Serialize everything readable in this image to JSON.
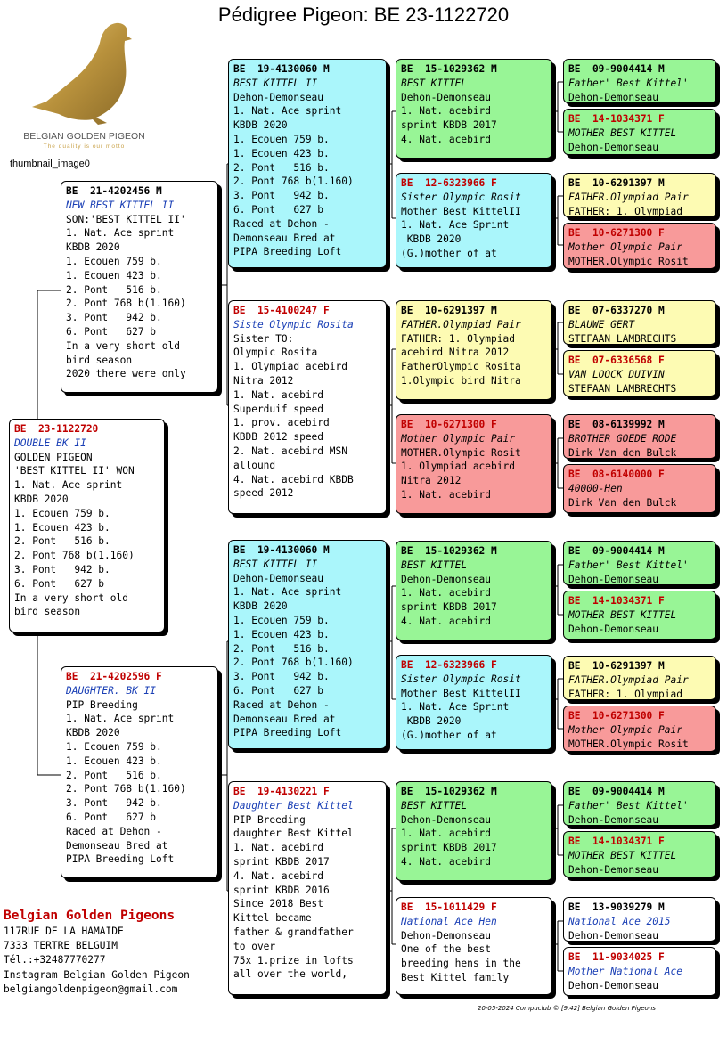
{
  "title": "Pédigree Pigeon: BE  23-1122720",
  "logo": {
    "brand": "BELGIAN GOLDEN PIGEON",
    "slogan": "The quality is our motto",
    "caption": "thumbnail_image0"
  },
  "breeder": {
    "name": "Belgian Golden Pigeons",
    "lines": [
      "117RUE DE LA HAMAIDE",
      "7333  TERTRE BELGUIM",
      "Tél.:+32487770277",
      "Instagram Belgian Golden Pigeon",
      "belgiangoldenpigeon@gmail.com"
    ]
  },
  "footer": "20-05-2024   Compuclub © [9.42]  Belgian Golden Pigeons",
  "boxes": [
    {
      "key": "subject",
      "sex": "F",
      "color": "white",
      "id": "BE  23-1122720",
      "name": "DOUBLE BK II",
      "lines": [
        "GOLDEN PIGEON",
        "'BEST KITTEL II' WON",
        "1. Nat. Ace sprint",
        "KBDB 2020",
        "1. Ecouen 759 b.",
        "1. Ecouen 423 b.",
        "2. Pont   516 b.",
        "2. Pont 768 b(1.160)",
        "3. Pont   942 b.",
        "6. Pont   627 b",
        "In a very short old",
        "bird season"
      ]
    },
    {
      "key": "father",
      "sex": "M",
      "color": "white",
      "id": "BE  21-4202456 M",
      "name": "NEW BEST KITTEL II",
      "lines": [
        "SON:'BEST KITTEL II'",
        "1. Nat. Ace sprint",
        "KBDB 2020",
        "1. Ecouen 759 b.",
        "1. Ecouen 423 b.",
        "2. Pont   516 b.",
        "2. Pont 768 b(1.160)",
        "3. Pont   942 b.",
        "6. Pont   627 b",
        "In a very short old",
        "bird season",
        "2020 there were only"
      ]
    },
    {
      "key": "mother",
      "sex": "F",
      "color": "white",
      "id": "BE  21-4202596 F",
      "name": "DAUGHTER. BK II",
      "lines": [
        "PIP Breeding",
        "1. Nat. Ace sprint",
        "KBDB 2020",
        "1. Ecouen 759 b.",
        "1. Ecouen 423 b.",
        "2. Pont   516 b.",
        "2. Pont 768 b(1.160)",
        "3. Pont   942 b.",
        "6. Pont   627 b",
        "Raced at Dehon -",
        "Demonseau Bred at",
        "PIPA Breeding Loft"
      ]
    },
    {
      "key": "ff",
      "sex": "M",
      "color": "cyan",
      "id": "BE  19-4130060 M",
      "name": "BEST KITTEL II",
      "lines": [
        "Dehon-Demonseau",
        "1. Nat. Ace sprint",
        "KBDB 2020",
        "1. Ecouen 759 b.",
        "1. Ecouen 423 b.",
        "2. Pont   516 b.",
        "2. Pont 768 b(1.160)",
        "3. Pont   942 b.",
        "6. Pont   627 b",
        "Raced at Dehon -",
        "Demonseau Bred at",
        "PIPA Breeding Loft"
      ]
    },
    {
      "key": "fm",
      "sex": "F",
      "color": "white",
      "id": "BE  15-4100247 F",
      "name": "Siste Olympic Rosita",
      "lines": [
        "Sister TO:",
        "Olympic Rosita",
        "1. Olympiad acebird",
        "Nitra 2012",
        "1. Nat. acebird",
        "Superduif speed",
        "1. prov. acebird",
        "KBDB 2012 speed",
        "2. Nat. acebird MSN",
        "allound",
        "4. Nat. acebird KBDB",
        "speed 2012"
      ]
    },
    {
      "key": "mf",
      "sex": "M",
      "color": "cyan",
      "id": "BE  19-4130060 M",
      "name": "BEST KITTEL II",
      "lines": [
        "Dehon-Demonseau",
        "1. Nat. Ace sprint",
        "KBDB 2020",
        "1. Ecouen 759 b.",
        "1. Ecouen 423 b.",
        "2. Pont   516 b.",
        "2. Pont 768 b(1.160)",
        "3. Pont   942 b.",
        "6. Pont   627 b",
        "Raced at Dehon -",
        "Demonseau Bred at",
        "PIPA Breeding Loft"
      ]
    },
    {
      "key": "mm",
      "sex": "F",
      "color": "white",
      "id": "BE  19-4130221 F",
      "name": "Daughter Best Kittel",
      "lines": [
        "PIP Breeding",
        "daughter Best Kittel",
        "1. Nat. acebird",
        "sprint KBDB 2017",
        "4. Nat. acebird",
        "sprint KBDB 2016",
        "Since 2018 Best",
        "Kittel became",
        "father & grandfather",
        "to over",
        "75x 1.prize in lofts",
        "all over the world,"
      ]
    },
    {
      "key": "fff",
      "sex": "M",
      "color": "green",
      "id": "BE  15-1029362 M",
      "name": "BEST KITTEL",
      "lines": [
        "Dehon-Demonseau",
        "1. Nat. acebird",
        "sprint KBDB 2017",
        "4. Nat. acebird"
      ]
    },
    {
      "key": "ffm",
      "sex": "F",
      "color": "cyan",
      "id": "BE  12-6323966 F",
      "name": "Sister Olympic Rosit",
      "lines": [
        "Mother Best KittelII",
        "1. Nat. Ace Sprint",
        " KBDB 2020",
        "(G.)mother of at"
      ]
    },
    {
      "key": "fmf",
      "sex": "M",
      "color": "yellow",
      "id": "BE  10-6291397 M",
      "name": "FATHER.Olympiad Pair",
      "lines": [
        "FATHER: 1. Olympiad",
        "acebird Nitra 2012",
        "FatherOlympic Rosita",
        "1.Olympic bird Nitra"
      ]
    },
    {
      "key": "fmm",
      "sex": "F",
      "color": "red",
      "id": "BE  10-6271300 F",
      "name": "Mother Olympic Pair",
      "lines": [
        "MOTHER.Olympic Rosit",
        "1. Olympiad acebird",
        "Nitra 2012",
        "1. Nat. acebird"
      ]
    },
    {
      "key": "mff",
      "sex": "M",
      "color": "green",
      "id": "BE  15-1029362 M",
      "name": "BEST KITTEL",
      "lines": [
        "Dehon-Demonseau",
        "1. Nat. acebird",
        "sprint KBDB 2017",
        "4. Nat. acebird"
      ]
    },
    {
      "key": "mfm",
      "sex": "F",
      "color": "cyan",
      "id": "BE  12-6323966 F",
      "name": "Sister Olympic Rosit",
      "lines": [
        "Mother Best KittelII",
        "1. Nat. Ace Sprint",
        " KBDB 2020",
        "(G.)mother of at"
      ]
    },
    {
      "key": "mmf",
      "sex": "M",
      "color": "green",
      "id": "BE  15-1029362 M",
      "name": "BEST KITTEL",
      "lines": [
        "Dehon-Demonseau",
        "1. Nat. acebird",
        "sprint KBDB 2017",
        "4. Nat. acebird"
      ]
    },
    {
      "key": "mmm",
      "sex": "F",
      "color": "white",
      "id": "BE  15-1011429 F",
      "name": "National Ace Hen",
      "lines": [
        "Dehon-Demonseau",
        "One of the best",
        "breeding hens in the",
        "Best Kittel family"
      ]
    },
    {
      "key": "g1",
      "sex": "M",
      "color": "green",
      "id": "BE  09-9004414 M",
      "name": "Father' Best Kittel'",
      "lines": [
        "Dehon-Demonseau"
      ]
    },
    {
      "key": "g2",
      "sex": "F",
      "color": "green",
      "id": "BE  14-1034371 F",
      "name": "MOTHER BEST KITTEL",
      "lines": [
        "Dehon-Demonseau"
      ]
    },
    {
      "key": "g3",
      "sex": "M",
      "color": "yellow",
      "id": "BE  10-6291397 M",
      "name": "FATHER.Olympiad Pair",
      "lines": [
        "FATHER: 1. Olympiad"
      ]
    },
    {
      "key": "g4",
      "sex": "F",
      "color": "red",
      "id": "BE  10-6271300 F",
      "name": "Mother Olympic Pair",
      "lines": [
        "MOTHER.Olympic Rosit"
      ]
    },
    {
      "key": "g5",
      "sex": "M",
      "color": "yellow",
      "id": "BE  07-6337270 M",
      "name": "BLAUWE GERT",
      "lines": [
        "STEFAAN LAMBRECHTS"
      ]
    },
    {
      "key": "g6",
      "sex": "F",
      "color": "yellow",
      "id": "BE  07-6336568 F",
      "name": "VAN LOOCK DUIVIN",
      "lines": [
        "STEFAAN LAMBRECHTS"
      ]
    },
    {
      "key": "g7",
      "sex": "M",
      "color": "red",
      "id": "BE  08-6139992 M",
      "name": "BROTHER GOEDE RODE",
      "lines": [
        "Dirk Van den Bulck"
      ]
    },
    {
      "key": "g8",
      "sex": "F",
      "color": "red",
      "id": "BE  08-6140000 F",
      "name": "40000-Hen",
      "lines": [
        "Dirk Van den Bulck"
      ]
    },
    {
      "key": "g9",
      "sex": "M",
      "color": "green",
      "id": "BE  09-9004414 M",
      "name": "Father' Best Kittel'",
      "lines": [
        "Dehon-Demonseau"
      ]
    },
    {
      "key": "g10",
      "sex": "F",
      "color": "green",
      "id": "BE  14-1034371 F",
      "name": "MOTHER BEST KITTEL",
      "lines": [
        "Dehon-Demonseau"
      ]
    },
    {
      "key": "g11",
      "sex": "M",
      "color": "yellow",
      "id": "BE  10-6291397 M",
      "name": "FATHER.Olympiad Pair",
      "lines": [
        "FATHER: 1. Olympiad"
      ]
    },
    {
      "key": "g12",
      "sex": "F",
      "color": "red",
      "id": "BE  10-6271300 F",
      "name": "Mother Olympic Pair",
      "lines": [
        "MOTHER.Olympic Rosit"
      ]
    },
    {
      "key": "g13",
      "sex": "M",
      "color": "green",
      "id": "BE  09-9004414 M",
      "name": "Father' Best Kittel'",
      "lines": [
        "Dehon-Demonseau"
      ]
    },
    {
      "key": "g14",
      "sex": "F",
      "color": "green",
      "id": "BE  14-1034371 F",
      "name": "MOTHER BEST KITTEL",
      "lines": [
        "Dehon-Demonseau"
      ]
    },
    {
      "key": "g15",
      "sex": "M",
      "color": "white",
      "id": "BE  13-9039279 M",
      "name": "National Ace 2015",
      "lines": [
        "Dehon-Demonseau"
      ]
    },
    {
      "key": "g16",
      "sex": "F",
      "color": "white",
      "id": "BE  11-9034025 F",
      "name": "Mother National Ace",
      "lines": [
        "Dehon-Demonseau"
      ]
    }
  ]
}
